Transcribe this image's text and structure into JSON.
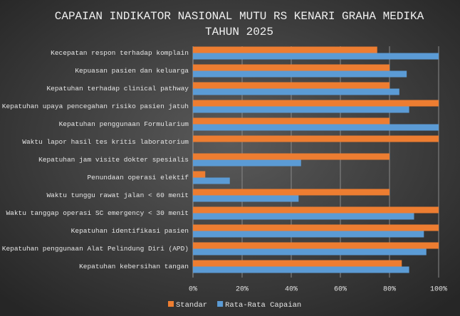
{
  "chart_data": {
    "type": "bar",
    "orientation": "horizontal",
    "title": "CAPAIAN INDIKATOR NASIONAL MUTU RS KENARI GRAHA MEDIKA",
    "subtitle": "TAHUN 2025",
    "categories": [
      "Kecepatan respon terhadap komplain",
      "Kepuasan pasien dan keluarga",
      "Kepatuhan terhadap clinical pathway",
      "Kepatuhan upaya pencegahan risiko  pasien jatuh",
      "Kepatuhan penggunaan Formularium",
      "Waktu lapor hasil tes kritis laboratorium",
      "Kepatuhan jam visite dokter spesialis",
      "Penundaan operasi elektif",
      "Waktu tunggu rawat jalan < 60 menit",
      "Waktu tanggap operasi SC emergency < 30 menit",
      "Kepatuhan identifikasi pasien",
      "Kepatuhan penggunaan Alat Pelindung Diri (APD)",
      "Kepatuhan kebersihan  tangan"
    ],
    "series": [
      {
        "name": "Standar",
        "color": "#ed7d31",
        "values": [
          75,
          80,
          80,
          100,
          80,
          100,
          80,
          5,
          80,
          100,
          100,
          100,
          85
        ]
      },
      {
        "name": "Rata-Rata Capaian",
        "color": "#5b9bd5",
        "values": [
          100,
          87,
          84,
          88,
          100,
          null,
          44,
          15,
          43,
          90,
          94,
          95,
          88
        ]
      }
    ],
    "xlim": [
      0,
      100
    ],
    "xticks": [
      {
        "value": 0,
        "label": "0%"
      },
      {
        "value": 20,
        "label": "20%"
      },
      {
        "value": 40,
        "label": "40%"
      },
      {
        "value": 60,
        "label": "60%"
      },
      {
        "value": 80,
        "label": "80%"
      },
      {
        "value": 100,
        "label": "100%"
      }
    ],
    "grid": true,
    "legend": "bottom"
  }
}
